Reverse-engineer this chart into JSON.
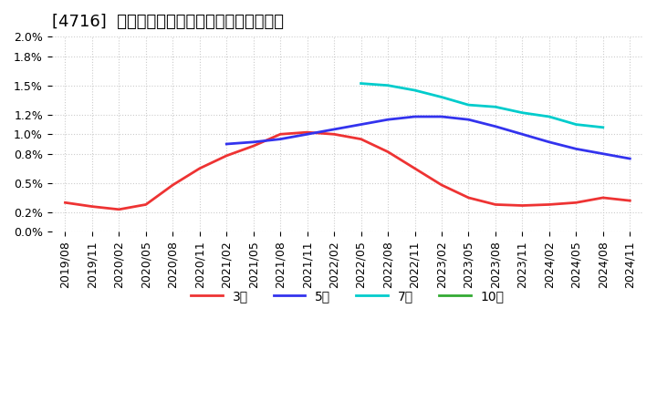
{
  "title": "[4716]  当期純利益マージンの標準偏差の推移",
  "ylabel": "",
  "ylim": [
    0.0,
    0.02
  ],
  "yticks": [
    0.0,
    0.002,
    0.005,
    0.008,
    0.01,
    0.012,
    0.015,
    0.018,
    0.02
  ],
  "ytick_labels": [
    "0.0%",
    "0.2%",
    "0.5%",
    "0.8%",
    "1.0%",
    "1.2%",
    "1.5%",
    "1.8%",
    "2.0%"
  ],
  "x_labels": [
    "2019/08",
    "2019/11",
    "2020/02",
    "2020/05",
    "2020/08",
    "2020/11",
    "2021/02",
    "2021/05",
    "2021/08",
    "2021/11",
    "2022/02",
    "2022/05",
    "2022/08",
    "2022/11",
    "2023/02",
    "2023/05",
    "2023/08",
    "2023/11",
    "2024/02",
    "2024/05",
    "2024/08",
    "2024/11"
  ],
  "series": {
    "3年": {
      "color": "#ee3333",
      "data": [
        0.003,
        0.0026,
        0.0023,
        0.0028,
        0.0048,
        0.0065,
        0.0078,
        0.0088,
        0.01,
        0.0102,
        0.01,
        0.0095,
        0.0082,
        0.0065,
        0.0048,
        0.0035,
        0.0028,
        0.0027,
        0.0028,
        0.003,
        0.0035,
        0.0032
      ]
    },
    "5年": {
      "color": "#3333ee",
      "data": [
        null,
        null,
        null,
        null,
        null,
        null,
        0.009,
        0.0092,
        0.0095,
        0.01,
        0.0105,
        0.011,
        0.0115,
        0.0118,
        0.0118,
        0.0115,
        0.0108,
        0.01,
        0.0092,
        0.0085,
        0.008,
        0.0075
      ]
    },
    "7年": {
      "color": "#00cccc",
      "data": [
        null,
        null,
        null,
        null,
        null,
        null,
        null,
        null,
        null,
        null,
        null,
        0.0152,
        0.015,
        0.0145,
        0.0138,
        0.013,
        0.0128,
        0.0122,
        0.0118,
        0.011,
        0.0107,
        null
      ]
    },
    "10年": {
      "color": "#33aa33",
      "data": [
        null,
        null,
        null,
        null,
        null,
        null,
        null,
        null,
        null,
        null,
        null,
        null,
        null,
        null,
        null,
        null,
        null,
        null,
        null,
        null,
        null,
        null
      ]
    }
  },
  "legend_labels": [
    "3年",
    "5年",
    "7年",
    "10年"
  ],
  "legend_colors": [
    "#ee3333",
    "#3333ee",
    "#00cccc",
    "#33aa33"
  ],
  "background_color": "#ffffff",
  "plot_bg_color": "#ffffff",
  "grid_color": "#cccccc",
  "title_fontsize": 13,
  "tick_fontsize": 9
}
